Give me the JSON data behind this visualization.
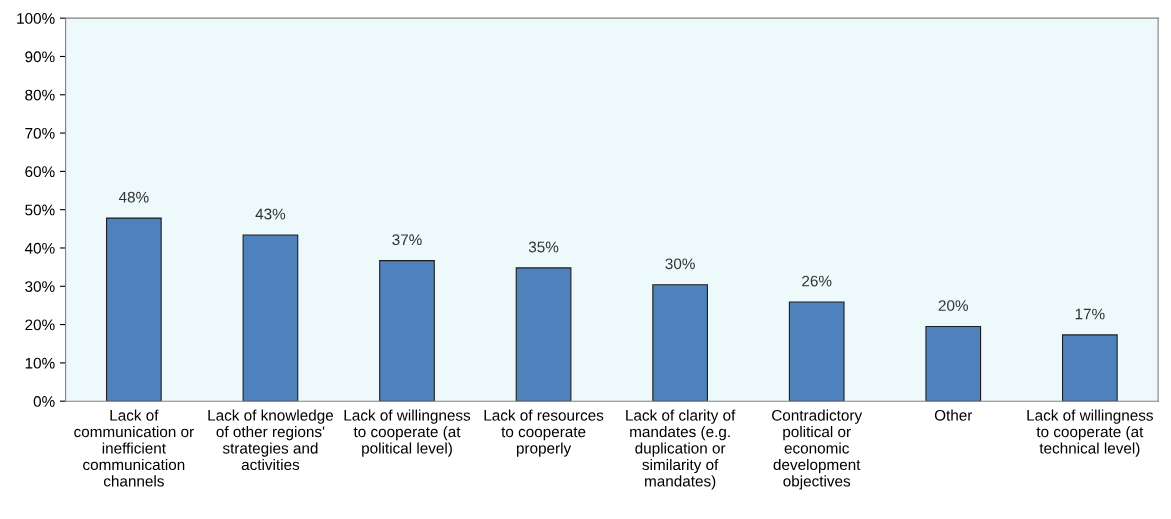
{
  "chart_data": {
    "type": "bar",
    "categories": [
      "Lack of communication or inefficient communication channels",
      "Lack of knowledge of other regions' strategies and activities",
      "Lack of willingness to cooperate (at political level)",
      "Lack of resources to cooperate properly",
      "Lack of clarity of mandates (e.g. duplication or similarity of mandates)",
      "Contradictory political or economic development objectives",
      "Other",
      "Lack of willingness to cooperate (at technical level)"
    ],
    "values": [
      47.8,
      43.4,
      36.7,
      34.8,
      30.4,
      25.9,
      19.5,
      17.3
    ],
    "value_labels": [
      "48%",
      "43%",
      "37%",
      "35%",
      "30%",
      "26%",
      "20%",
      "17%"
    ],
    "color": "#4f81bd",
    "ylim": [
      0,
      100
    ],
    "yticks": [
      {
        "value": 0,
        "label": "0%"
      },
      {
        "value": 10,
        "label": "10%"
      },
      {
        "value": 20,
        "label": "20%"
      },
      {
        "value": 30,
        "label": "30%"
      },
      {
        "value": 40,
        "label": "40%"
      },
      {
        "value": 50,
        "label": "50%"
      },
      {
        "value": 60,
        "label": "60%"
      },
      {
        "value": 70,
        "label": "70%"
      },
      {
        "value": 80,
        "label": "80%"
      },
      {
        "value": 90,
        "label": "90%"
      },
      {
        "value": 100,
        "label": "100%"
      }
    ],
    "grid": false
  }
}
